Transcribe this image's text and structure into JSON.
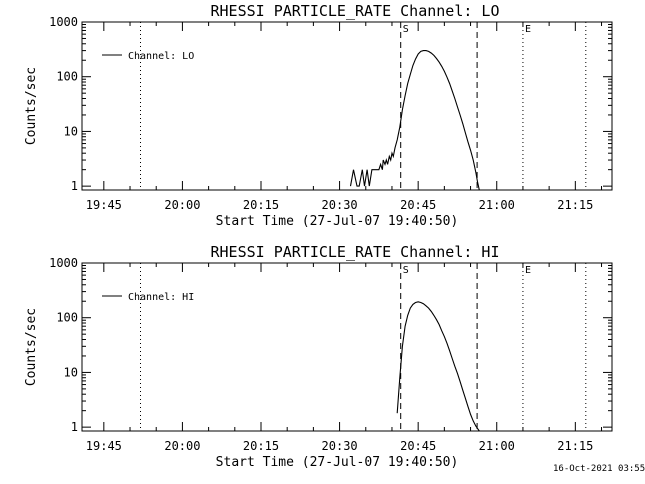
{
  "footer": {
    "timestamp": "16-Oct-2021 03:55"
  },
  "chart_data": [
    {
      "type": "line",
      "title": "RHESSI PARTICLE_RATE Channel: LO",
      "xlabel": "Start Time (27-Jul-07 19:40:50)",
      "ylabel": "Counts/sec",
      "y_scale": "log",
      "ylim": [
        0.85,
        1000
      ],
      "xlim": [
        "19:40:50",
        "21:22:00"
      ],
      "x_ticks": [
        "19:45",
        "20:00",
        "20:15",
        "20:30",
        "20:45",
        "21:00",
        "21:15"
      ],
      "y_ticks": [
        "1",
        "10",
        "100",
        "1000"
      ],
      "legend": {
        "placement": "top-left",
        "entries": [
          "Channel: LO"
        ]
      },
      "markers": [
        {
          "label": "",
          "time": "19:52:00",
          "style": "dotted"
        },
        {
          "label": "S",
          "time": "20:41:40",
          "style": "dashed"
        },
        {
          "label": "",
          "time": "20:56:15",
          "style": "dashed"
        },
        {
          "label": "E",
          "time": "21:05:00",
          "style": "dotted"
        },
        {
          "label": "",
          "time": "21:17:00",
          "style": "dotted"
        }
      ],
      "series": [
        {
          "name": "Channel: LO",
          "x": [
            "20:32:05",
            "20:32:40",
            "20:33:20",
            "20:33:45",
            "20:34:20",
            "20:34:45",
            "20:35:15",
            "20:35:40",
            "20:36:10",
            "20:36:40",
            "20:37:00",
            "20:37:30",
            "20:37:50",
            "20:38:10",
            "20:38:20",
            "20:38:40",
            "20:38:55",
            "20:39:10",
            "20:39:30",
            "20:39:45",
            "20:40:00",
            "20:40:15",
            "20:40:35",
            "20:41:00",
            "20:41:30",
            "20:42:00",
            "20:42:30",
            "20:43:00",
            "20:43:30",
            "20:44:00",
            "20:44:30",
            "20:45:00",
            "20:45:30",
            "20:46:00",
            "20:46:30",
            "20:47:00",
            "20:47:30",
            "20:48:00",
            "20:48:30",
            "20:49:00",
            "20:49:30",
            "20:50:00",
            "20:50:30",
            "20:51:00",
            "20:51:30",
            "20:52:00",
            "20:52:30",
            "20:53:00",
            "20:53:30",
            "20:54:00",
            "20:54:30",
            "20:55:00",
            "20:55:30",
            "20:56:00",
            "20:56:20",
            "20:56:40"
          ],
          "y": [
            1,
            2,
            1,
            1,
            2,
            1,
            2,
            1,
            2,
            2,
            2,
            2,
            2.5,
            2,
            3,
            2.5,
            3,
            2.5,
            3.5,
            3,
            4,
            3.5,
            5,
            7,
            12,
            25,
            45,
            75,
            110,
            160,
            210,
            260,
            290,
            300,
            300,
            290,
            270,
            245,
            215,
            185,
            155,
            125,
            98,
            75,
            55,
            40,
            28,
            20,
            14,
            9.5,
            6.5,
            4.5,
            3,
            1.8,
            1.2,
            0.85
          ]
        }
      ]
    },
    {
      "type": "line",
      "title": "RHESSI PARTICLE_RATE Channel: HI",
      "xlabel": "Start Time (27-Jul-07 19:40:50)",
      "ylabel": "Counts/sec",
      "y_scale": "log",
      "ylim": [
        0.85,
        1000
      ],
      "xlim": [
        "19:40:50",
        "21:22:00"
      ],
      "x_ticks": [
        "19:45",
        "20:00",
        "20:15",
        "20:30",
        "20:45",
        "21:00",
        "21:15"
      ],
      "y_ticks": [
        "1",
        "10",
        "100",
        "1000"
      ],
      "legend": {
        "placement": "top-left",
        "entries": [
          "Channel: HI"
        ]
      },
      "markers": [
        {
          "label": "",
          "time": "19:52:00",
          "style": "dotted"
        },
        {
          "label": "S",
          "time": "20:41:40",
          "style": "dashed"
        },
        {
          "label": "",
          "time": "20:56:15",
          "style": "dashed"
        },
        {
          "label": "E",
          "time": "21:05:00",
          "style": "dotted"
        },
        {
          "label": "",
          "time": "21:17:00",
          "style": "dotted"
        }
      ],
      "series": [
        {
          "name": "Channel: HI",
          "x": [
            "20:41:00",
            "20:41:30",
            "20:42:00",
            "20:42:30",
            "20:43:00",
            "20:43:30",
            "20:44:00",
            "20:44:30",
            "20:45:00",
            "20:45:30",
            "20:46:00",
            "20:46:30",
            "20:47:00",
            "20:47:30",
            "20:48:00",
            "20:48:30",
            "20:49:00",
            "20:49:30",
            "20:50:00",
            "20:50:30",
            "20:51:00",
            "20:51:30",
            "20:52:00",
            "20:52:30",
            "20:53:00",
            "20:53:30",
            "20:54:00",
            "20:54:30",
            "20:55:00",
            "20:55:30",
            "20:56:00",
            "20:56:20",
            "20:56:40"
          ],
          "y": [
            1.8,
            8,
            30,
            70,
            110,
            150,
            175,
            190,
            195,
            190,
            180,
            165,
            150,
            130,
            110,
            92,
            75,
            58,
            45,
            34,
            25,
            18,
            13,
            9.5,
            6.8,
            4.8,
            3.4,
            2.4,
            1.7,
            1.3,
            1.05,
            0.95,
            0.85
          ]
        }
      ]
    }
  ]
}
